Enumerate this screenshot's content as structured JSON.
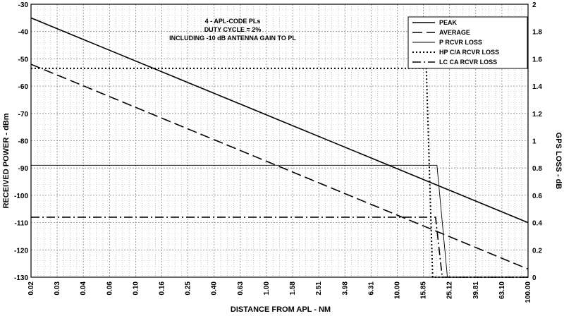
{
  "chart_data": {
    "type": "line",
    "xlabel": "DISTANCE FROM APL - NM",
    "ylabel": "RECEIVED POWER - dBm",
    "y2label": "GPS LOSS - dB",
    "x_scale": "log",
    "x_ticks": [
      "0.02",
      "0.03",
      "0.04",
      "0.06",
      "0.10",
      "0.16",
      "0.25",
      "0.40",
      "0.63",
      "1.00",
      "1.58",
      "2.51",
      "3.98",
      "6.31",
      "10.00",
      "15.85",
      "25.12",
      "39.81",
      "63.10",
      "100.00"
    ],
    "ylim": [
      -130,
      -30
    ],
    "y_ticks": [
      -30,
      -40,
      -50,
      -60,
      -70,
      -80,
      -90,
      -100,
      -110,
      -120,
      -130
    ],
    "y2lim": [
      0,
      2
    ],
    "y2_ticks": [
      "2",
      "1.8",
      "1.6",
      "1.4",
      "1.2",
      "1",
      "0.8",
      "0.6",
      "0.4",
      "0.2",
      "0"
    ],
    "grid": true,
    "legend_position": "top-right",
    "annotations": [
      "4 - APL-CODE PLs",
      "DUTY CYCLE = 2%",
      "INCLUDING -10 dB ANTENNA GAIN TO PL"
    ],
    "series": [
      {
        "name": "PEAK",
        "axis": "left",
        "style": "solid-thick",
        "x": [
          0.02,
          100.0
        ],
        "y": [
          -35,
          -110
        ]
      },
      {
        "name": "AVERAGE",
        "axis": "left",
        "style": "long-dash",
        "x": [
          0.02,
          100.0
        ],
        "y": [
          -52,
          -127
        ]
      },
      {
        "name": "P RCVR LOSS",
        "axis": "right",
        "style": "solid-thin",
        "x": [
          0.02,
          21.0,
          25.12,
          100.0
        ],
        "y": [
          0.82,
          0.82,
          0,
          0
        ]
      },
      {
        "name": "HP C/A RCVR LOSS",
        "axis": "right",
        "style": "dotted",
        "x": [
          0.02,
          17.5,
          19.5,
          100.0
        ],
        "y": [
          1.53,
          1.53,
          0,
          0
        ]
      },
      {
        "name": "LC CA RCVR LOSS",
        "axis": "right",
        "style": "dash-dot",
        "x": [
          0.02,
          20.5,
          23.0,
          100.0
        ],
        "y": [
          0.44,
          0.44,
          0,
          0
        ]
      }
    ]
  }
}
